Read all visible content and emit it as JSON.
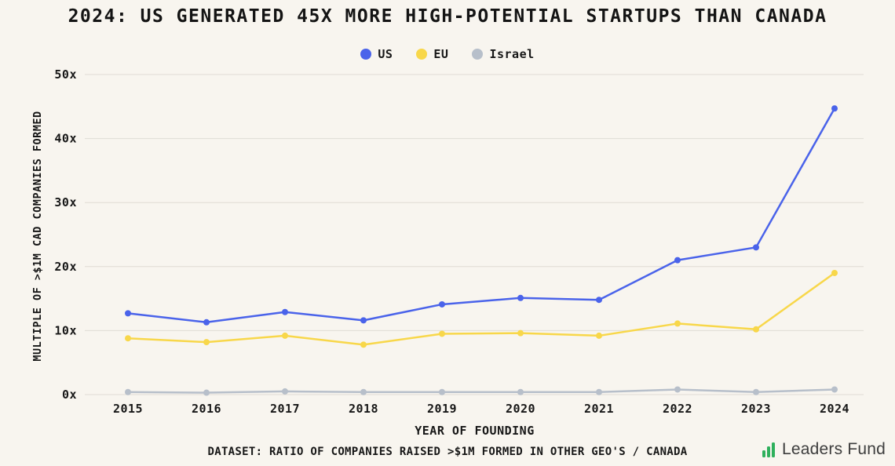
{
  "title": "2024: US GENERATED 45X MORE HIGH-POTENTIAL STARTUPS THAN CANADA",
  "chart_data": {
    "type": "line",
    "x": [
      2015,
      2016,
      2017,
      2018,
      2019,
      2020,
      2021,
      2022,
      2023,
      2024
    ],
    "series": [
      {
        "name": "US",
        "color": "#4a63ea",
        "values": [
          12.7,
          11.3,
          12.9,
          11.6,
          14.1,
          15.1,
          14.8,
          21,
          23,
          44.7
        ]
      },
      {
        "name": "EU",
        "color": "#f8d74a",
        "values": [
          8.8,
          8.2,
          9.2,
          7.8,
          9.5,
          9.6,
          9.2,
          11.1,
          10.2,
          19
        ]
      },
      {
        "name": "Israel",
        "color": "#b7bfca",
        "values": [
          0.4,
          0.3,
          0.5,
          0.4,
          0.4,
          0.4,
          0.4,
          0.8,
          0.4,
          0.8
        ]
      }
    ],
    "ylabel": "MULTIPLE OF >$1M CAD COMPANIES FORMED",
    "xlabel": "YEAR OF FOUNDING",
    "ylim": [
      0,
      50
    ],
    "yticks": [
      0,
      10,
      20,
      30,
      40,
      50
    ],
    "ytick_suffix": "x",
    "grid": true,
    "legend_position": "top"
  },
  "footer": {
    "dataset_note": "DATASET: RATIO OF COMPANIES RAISED >$1M FORMED IN OTHER GEO'S / CANADA",
    "logo_text": "Leaders Fund"
  },
  "colors": {
    "background": "#f8f5ef",
    "grid": "#dfdcd4",
    "text": "#171717",
    "logo_green": "#2eb05c"
  }
}
